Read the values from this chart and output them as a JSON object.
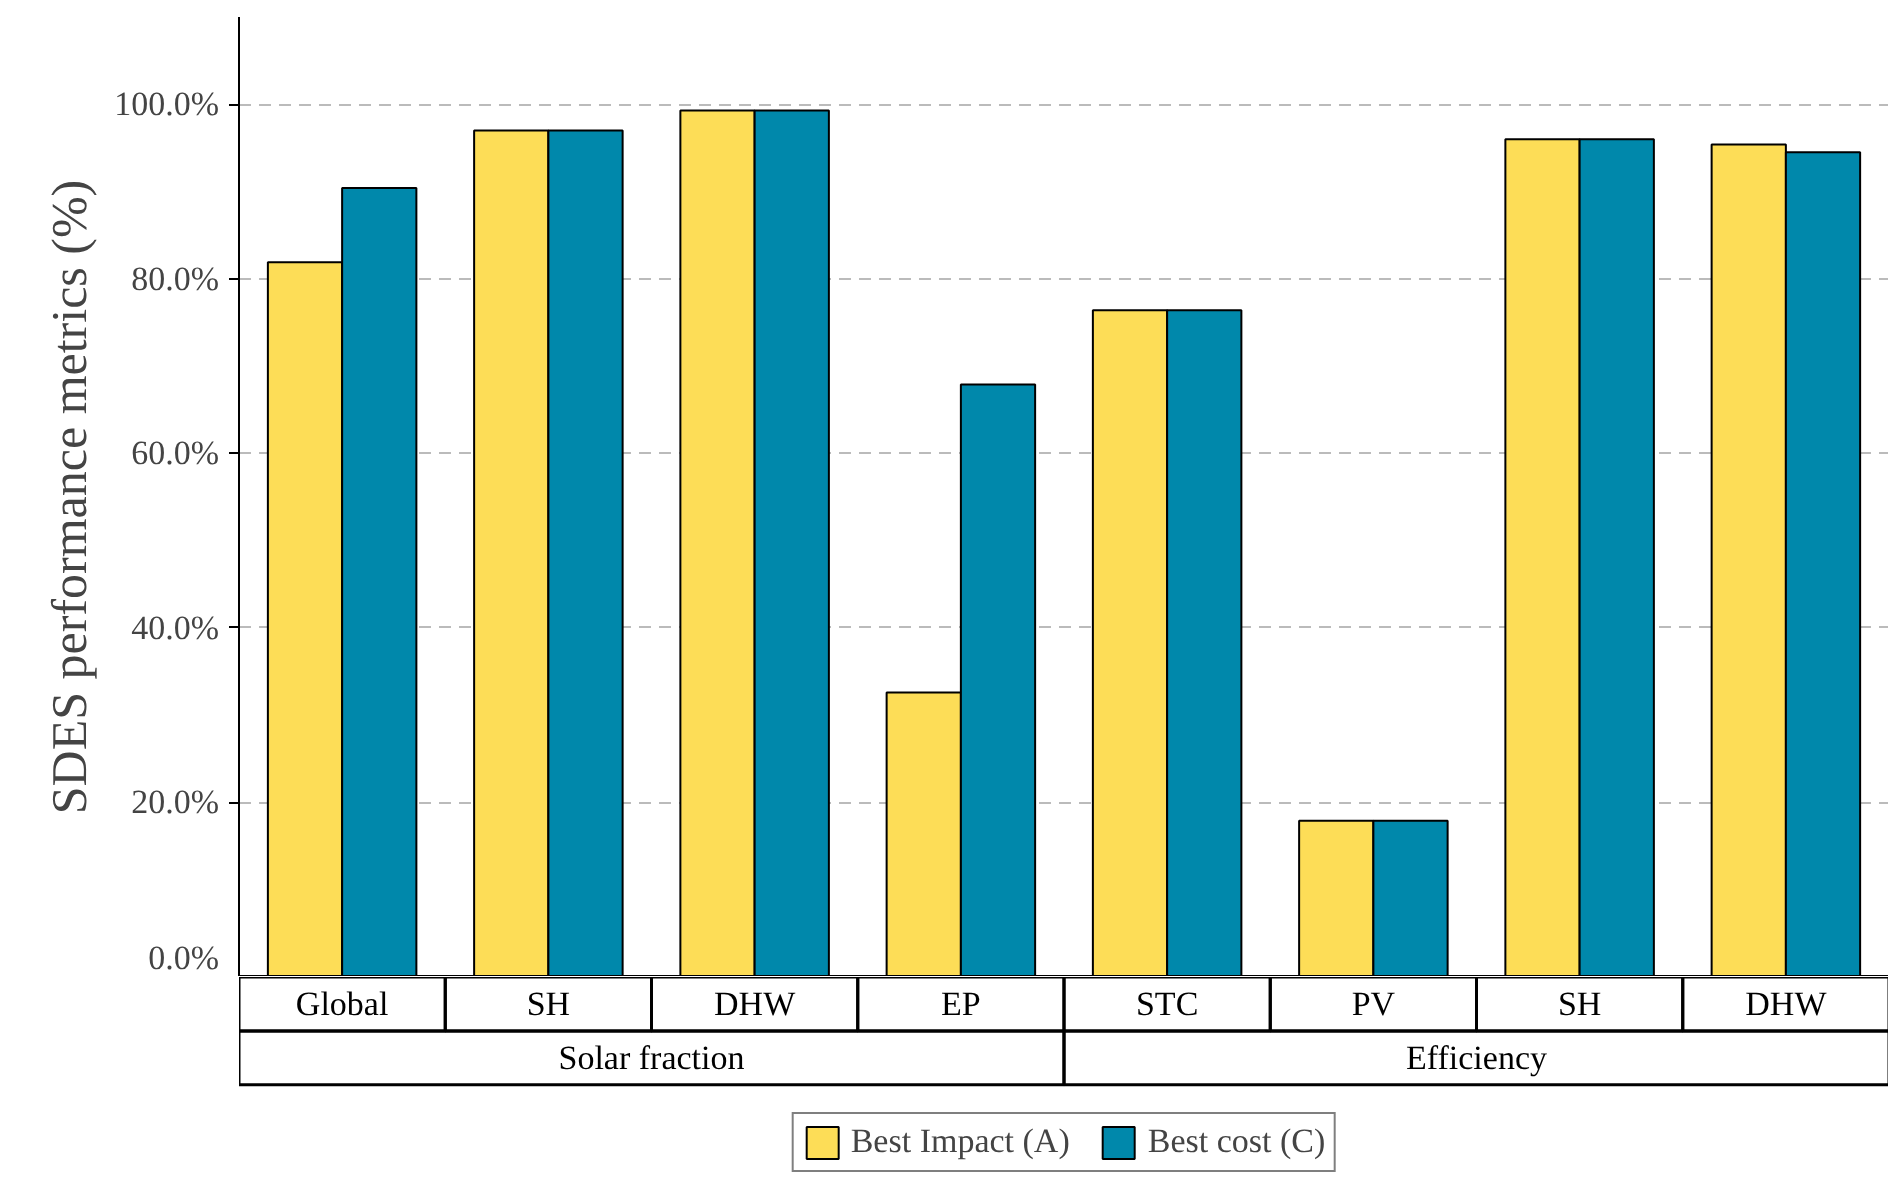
{
  "chart_data": {
    "type": "bar",
    "ylabel": "SDES performance metrics (%)",
    "categories": [
      "Global",
      "SH",
      "DHW",
      "EP",
      "STC",
      "PV",
      "SH",
      "DHW"
    ],
    "annotations": [
      "Solar fraction",
      "Efficiency"
    ],
    "series": [
      {
        "name": "Best Impact (A)",
        "color": "#fddd57",
        "values": [
          81.9,
          97.0,
          99.3,
          32.6,
          76.4,
          17.9,
          96.0,
          95.4
        ]
      },
      {
        "name": "Best cost (C)",
        "color": "#0088ab",
        "values": [
          90.4,
          97.0,
          99.3,
          67.9,
          76.4,
          17.9,
          96.0,
          94.5
        ]
      }
    ],
    "ylim": [
      0,
      110
    ],
    "yticks": [
      {
        "value": 0,
        "label": "0.0%"
      },
      {
        "value": 20,
        "label": "20.0%"
      },
      {
        "value": 40,
        "label": "40.0%"
      },
      {
        "value": 60,
        "label": "60.0%"
      },
      {
        "value": 80,
        "label": "80.0%"
      },
      {
        "value": 100,
        "label": "100.0%"
      }
    ],
    "grid": "y",
    "legend": "bottom"
  }
}
